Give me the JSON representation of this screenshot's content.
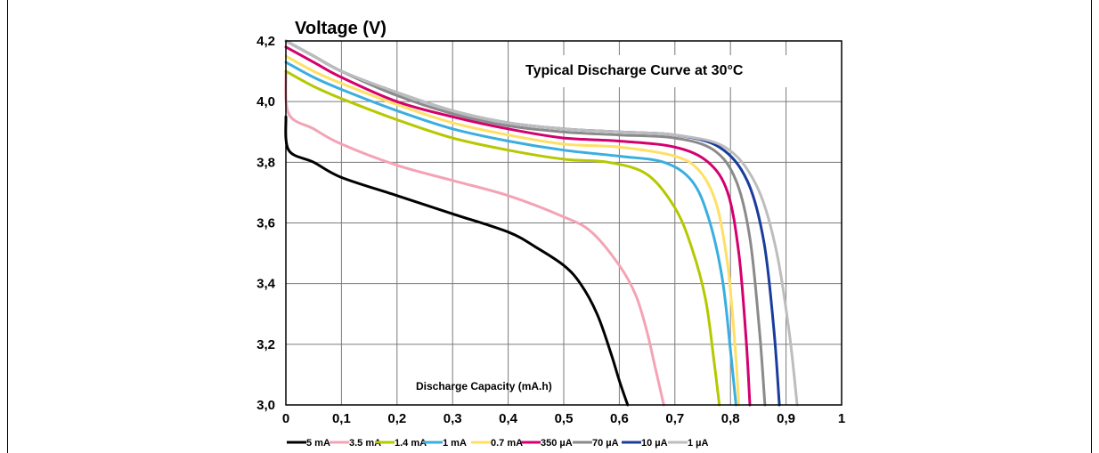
{
  "chart_data": {
    "type": "line",
    "title": "Typical Discharge Curve at 30°C",
    "ylabel": "Voltage (V)",
    "xlabel": "Discharge Capacity (mA.h)",
    "xlim": [
      0,
      1
    ],
    "ylim": [
      3.0,
      4.2
    ],
    "x_ticks": [
      "0",
      "0,1",
      "0,2",
      "0,3",
      "0,4",
      "0,5",
      "0,6",
      "0,7",
      "0,8",
      "0,9",
      "1"
    ],
    "y_ticks": [
      "3,0",
      "3,2",
      "3,4",
      "3,6",
      "3,8",
      "4,0",
      "4,2"
    ],
    "grid": true,
    "legend_position": "bottom",
    "series": [
      {
        "name": "5 mA",
        "color": "#000000",
        "x": [
          0,
          0.005,
          0.05,
          0.1,
          0.2,
          0.3,
          0.4,
          0.45,
          0.5,
          0.53,
          0.56,
          0.585,
          0.6,
          0.615
        ],
        "y": [
          3.95,
          3.84,
          3.8,
          3.75,
          3.69,
          3.63,
          3.57,
          3.52,
          3.46,
          3.4,
          3.3,
          3.17,
          3.08,
          3.0
        ]
      },
      {
        "name": "3.5 mA",
        "color": "#f4a3b4",
        "x": [
          0,
          0.005,
          0.05,
          0.1,
          0.2,
          0.3,
          0.4,
          0.5,
          0.55,
          0.6,
          0.63,
          0.65,
          0.665,
          0.68
        ],
        "y": [
          4.1,
          3.96,
          3.91,
          3.86,
          3.79,
          3.74,
          3.69,
          3.62,
          3.57,
          3.46,
          3.36,
          3.24,
          3.12,
          3.0
        ]
      },
      {
        "name": "1.4 mA",
        "color": "#b5c800",
        "x": [
          0,
          0.05,
          0.1,
          0.2,
          0.3,
          0.4,
          0.5,
          0.58,
          0.65,
          0.7,
          0.73,
          0.755,
          0.77,
          0.78
        ],
        "y": [
          4.1,
          4.05,
          4.01,
          3.94,
          3.88,
          3.84,
          3.81,
          3.8,
          3.76,
          3.65,
          3.52,
          3.35,
          3.15,
          3.0
        ]
      },
      {
        "name": "1 mA",
        "color": "#3aaee0",
        "x": [
          0,
          0.05,
          0.1,
          0.2,
          0.3,
          0.4,
          0.5,
          0.6,
          0.68,
          0.73,
          0.76,
          0.785,
          0.8,
          0.81
        ],
        "y": [
          4.13,
          4.08,
          4.04,
          3.97,
          3.91,
          3.87,
          3.84,
          3.82,
          3.8,
          3.74,
          3.62,
          3.42,
          3.18,
          3.0
        ]
      },
      {
        "name": "0.7 mA",
        "color": "#ffe066",
        "x": [
          0,
          0.05,
          0.1,
          0.2,
          0.3,
          0.4,
          0.5,
          0.6,
          0.7,
          0.745,
          0.775,
          0.795,
          0.808,
          0.815
        ],
        "y": [
          4.15,
          4.1,
          4.06,
          3.99,
          3.93,
          3.89,
          3.86,
          3.85,
          3.82,
          3.77,
          3.66,
          3.46,
          3.2,
          3.0
        ]
      },
      {
        "name": "350 µA",
        "color": "#d4006e",
        "x": [
          0,
          0.05,
          0.1,
          0.2,
          0.3,
          0.4,
          0.5,
          0.6,
          0.7,
          0.76,
          0.795,
          0.815,
          0.828,
          0.835
        ],
        "y": [
          4.18,
          4.13,
          4.08,
          4.0,
          3.95,
          3.91,
          3.88,
          3.87,
          3.85,
          3.8,
          3.7,
          3.5,
          3.22,
          3.0
        ]
      },
      {
        "name": "70 µA",
        "color": "#8a8a8a",
        "x": [
          0,
          0.05,
          0.1,
          0.2,
          0.3,
          0.4,
          0.5,
          0.6,
          0.7,
          0.77,
          0.81,
          0.835,
          0.852,
          0.862
        ],
        "y": [
          4.2,
          4.15,
          4.1,
          4.02,
          3.96,
          3.92,
          3.9,
          3.89,
          3.88,
          3.84,
          3.74,
          3.55,
          3.25,
          3.0
        ]
      },
      {
        "name": "10 µA",
        "color": "#1a3c9c",
        "x": [
          0,
          0.05,
          0.1,
          0.2,
          0.3,
          0.4,
          0.5,
          0.6,
          0.7,
          0.78,
          0.83,
          0.86,
          0.878,
          0.888
        ],
        "y": [
          4.2,
          4.15,
          4.1,
          4.03,
          3.97,
          3.93,
          3.91,
          3.9,
          3.89,
          3.85,
          3.74,
          3.54,
          3.25,
          3.0
        ]
      },
      {
        "name": "1 µA",
        "color": "#bdbdbd",
        "x": [
          0,
          0.05,
          0.1,
          0.2,
          0.3,
          0.4,
          0.5,
          0.6,
          0.7,
          0.79,
          0.845,
          0.88,
          0.905,
          0.92
        ],
        "y": [
          4.2,
          4.15,
          4.1,
          4.03,
          3.97,
          3.93,
          3.91,
          3.9,
          3.89,
          3.85,
          3.73,
          3.53,
          3.25,
          3.0
        ]
      }
    ]
  }
}
